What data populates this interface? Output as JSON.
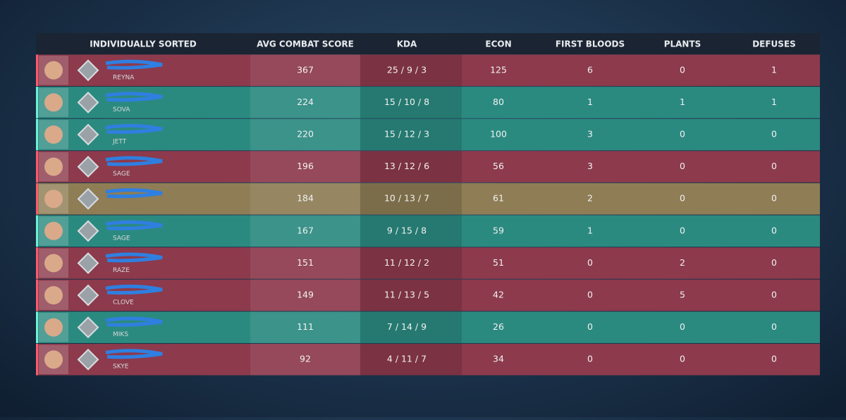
{
  "table": {
    "columns": [
      "INDIVIDUALLY SORTED",
      "AVG COMBAT SCORE",
      "KDA",
      "ECON",
      "FIRST BLOODS",
      "PLANTS",
      "DEFUSES"
    ],
    "rows": [
      {
        "agent": "REYNA",
        "color": "#8c3a4c",
        "cells": [
          "367",
          "25 / 9 / 3",
          "125",
          "6",
          "0",
          "1"
        ]
      },
      {
        "agent": "SOVA",
        "color": "#2b8a80",
        "cells": [
          "224",
          "15 / 10 / 8",
          "80",
          "1",
          "1",
          "1"
        ]
      },
      {
        "agent": "JETT",
        "color": "#2b8a80",
        "cells": [
          "220",
          "15 / 12 / 3",
          "100",
          "3",
          "0",
          "0"
        ]
      },
      {
        "agent": "SAGE",
        "color": "#8c3a4c",
        "cells": [
          "196",
          "13 / 12 / 6",
          "56",
          "3",
          "0",
          "0"
        ]
      },
      {
        "color": "#8e7d55",
        "cells": [
          "184",
          "10 / 13 / 7",
          "61",
          "2",
          "0",
          "0"
        ]
      },
      {
        "agent": "SAGE",
        "color": "#2b8a80",
        "cells": [
          "167",
          "9 / 15 / 8",
          "59",
          "1",
          "0",
          "0"
        ]
      },
      {
        "agent": "RAZE",
        "color": "#8c3a4c",
        "cells": [
          "151",
          "11 / 12 / 2",
          "51",
          "0",
          "2",
          "0"
        ]
      },
      {
        "agent": "CLOVE",
        "color": "#8c3a4c",
        "cells": [
          "149",
          "11 / 13 / 5",
          "42",
          "0",
          "5",
          "0"
        ]
      },
      {
        "agent": "MIKS",
        "color": "#2b8a80",
        "cells": [
          "111",
          "7 / 14 / 9",
          "26",
          "0",
          "0",
          "0"
        ]
      },
      {
        "agent": "SKYE",
        "color": "#8c3a4c",
        "cells": [
          "92",
          "4 / 11 / 7",
          "34",
          "0",
          "0",
          "0"
        ]
      }
    ]
  }
}
